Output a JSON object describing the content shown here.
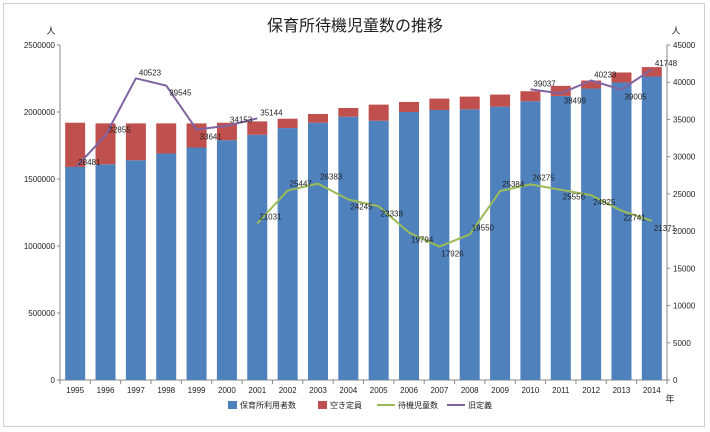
{
  "chart_data": {
    "type": "bar",
    "title": "保育所待機児童数の推移",
    "left_unit": "人",
    "right_unit": "人",
    "x_unit": "年",
    "categories": [
      "1995",
      "1996",
      "1997",
      "1998",
      "1999",
      "2000",
      "2001",
      "2002",
      "2003",
      "2004",
      "2005",
      "2006",
      "2007",
      "2008",
      "2009",
      "2010",
      "2011",
      "2012",
      "2013",
      "2014"
    ],
    "left_axis": {
      "min": 0,
      "max": 2500000,
      "step": 500000,
      "ticks": [
        "0",
        "500000",
        "1000000",
        "1500000",
        "2000000",
        "2500000"
      ]
    },
    "right_axis": {
      "min": 0,
      "max": 45000,
      "step": 5000,
      "ticks": [
        "0",
        "5000",
        "10000",
        "15000",
        "20000",
        "25000",
        "30000",
        "35000",
        "40000",
        "45000"
      ]
    },
    "bar_series": [
      {
        "name": "保育所利用者数",
        "color": "#4f81bd",
        "values": [
          1590000,
          1610000,
          1640000,
          1690000,
          1735000,
          1790000,
          1830000,
          1880000,
          1920000,
          1965000,
          1935000,
          2000000,
          2015000,
          2020000,
          2040000,
          2080000,
          2120000,
          2175000,
          2220000,
          2265000
        ]
      },
      {
        "name": "空き定員",
        "color": "#c0504d",
        "values": [
          330000,
          305000,
          275000,
          225000,
          180000,
          130000,
          100000,
          70000,
          65000,
          65000,
          120000,
          75000,
          85000,
          95000,
          90000,
          75000,
          75000,
          60000,
          75000,
          70000
        ]
      }
    ],
    "line_series": [
      {
        "name": "待機児童数",
        "color": "#9bbb59",
        "start_index": 6,
        "values": [
          21031,
          25447,
          26383,
          24245,
          23338,
          19794,
          17926,
          19550,
          25384,
          26275,
          25556,
          24825,
          22741,
          21371
        ],
        "labels": [
          "21031",
          "25447",
          "26383",
          "24245",
          "23338",
          "19794",
          "17926",
          "19550",
          "25384",
          "26275",
          "25556",
          "24825",
          "22741",
          "21371"
        ]
      },
      {
        "name": "旧定義",
        "color": "#8064a2",
        "segments": [
          {
            "start_index": 0,
            "values": [
              28481,
              32855,
              40523,
              39545,
              33641,
              34153,
              35144
            ],
            "labels": [
              "28481",
              "32855",
              "40523",
              "39545",
              "33641",
              "34153",
              "35144"
            ]
          },
          {
            "start_index": 15,
            "values": [
              39037,
              38499,
              40233,
              39005,
              41748
            ],
            "labels": [
              "39037",
              "38499",
              "40233",
              "39005",
              "41748"
            ]
          }
        ]
      }
    ],
    "grid": false,
    "legend_position": "bottom"
  }
}
